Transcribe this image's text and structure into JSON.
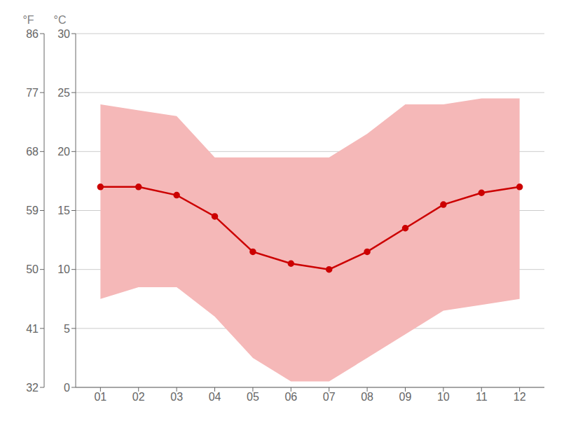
{
  "chart_data": {
    "type": "line",
    "x": [
      1,
      2,
      3,
      4,
      5,
      6,
      7,
      8,
      9,
      10,
      11,
      12
    ],
    "xlim": [
      0.35,
      12.65
    ],
    "xticks": [
      {
        "value": 1,
        "label": "01"
      },
      {
        "value": 2,
        "label": "02"
      },
      {
        "value": 3,
        "label": "03"
      },
      {
        "value": 4,
        "label": "04"
      },
      {
        "value": 5,
        "label": "05"
      },
      {
        "value": 6,
        "label": "06"
      },
      {
        "value": 7,
        "label": "07"
      },
      {
        "value": 8,
        "label": "08"
      },
      {
        "value": 9,
        "label": "09"
      },
      {
        "value": 10,
        "label": "10"
      },
      {
        "value": 11,
        "label": "11"
      },
      {
        "value": 12,
        "label": "12"
      }
    ],
    "ylim": [
      0,
      30
    ],
    "yticks": [
      0,
      5,
      10,
      15,
      20,
      25,
      30
    ],
    "ylabel": "°C",
    "y2lim": [
      32,
      86
    ],
    "y2ticks": [
      32,
      41,
      50,
      59,
      68,
      77,
      86
    ],
    "y2label": "°F",
    "grid": true,
    "series": [
      {
        "type": "band",
        "color": "#f5b8b8",
        "low": [
          7.5,
          8.5,
          8.5,
          6.0,
          2.5,
          0.5,
          0.5,
          2.5,
          4.5,
          6.5,
          7.0,
          7.5
        ],
        "high": [
          24.0,
          23.5,
          23.0,
          19.5,
          19.5,
          19.5,
          19.5,
          21.5,
          24.0,
          24.0,
          24.5,
          24.5
        ]
      },
      {
        "type": "line",
        "color": "#cc0000",
        "marker": "o",
        "values": [
          17.0,
          17.0,
          16.3,
          14.5,
          11.5,
          10.5,
          10.0,
          11.5,
          13.5,
          15.5,
          16.5,
          17.0
        ]
      }
    ]
  }
}
